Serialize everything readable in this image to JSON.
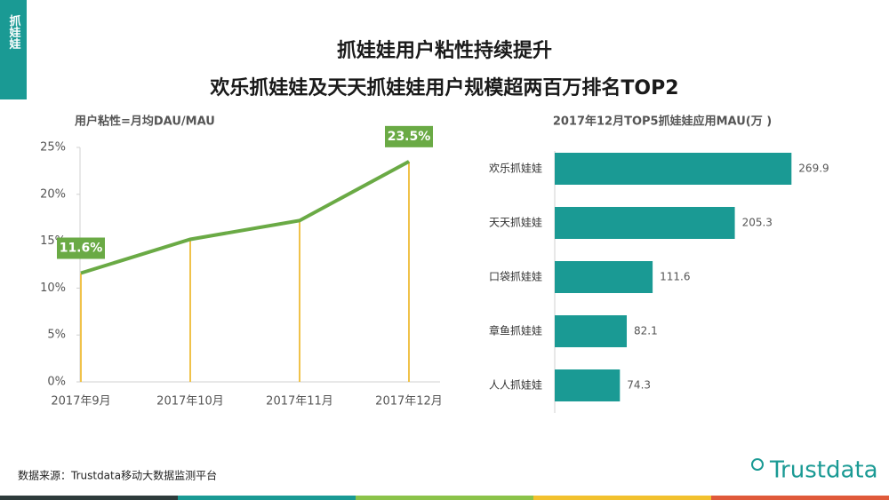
{
  "tab": "抓娃娃",
  "title": [
    "抓娃娃用户粘性持续提升",
    "欢乐抓娃娃及天天抓娃娃用户规模超两百万排名TOP2"
  ],
  "source": "数据来源：Trustdata移动大数据监测平台",
  "logo": "Trustdata",
  "chart_data": [
    {
      "type": "line",
      "title": "用户粘性=月均DAU/MAU",
      "categories": [
        "2017年9月",
        "2017年10月",
        "2017年11月",
        "2017年12月"
      ],
      "values": [
        11.6,
        15.2,
        17.2,
        23.5
      ],
      "value_labels": [
        "11.6%",
        null,
        null,
        "23.5%"
      ],
      "color": "#6aaa45",
      "drop_color": "#f0c24a",
      "ylim": [
        0,
        25
      ],
      "yticks": [
        {
          "value": 0,
          "label": "0%"
        },
        {
          "value": 5,
          "label": "5%"
        },
        {
          "value": 10,
          "label": "10%"
        },
        {
          "value": 15,
          "label": "15%"
        },
        {
          "value": 20,
          "label": "20%"
        },
        {
          "value": 25,
          "label": "25%"
        }
      ]
    },
    {
      "type": "hbar",
      "title": "2017年12月TOP5抓娃娃应用MAU(万 )",
      "categories": [
        "欢乐抓娃娃",
        "天天抓娃娃",
        "口袋抓娃娃",
        "章鱼抓娃娃",
        "人人抓娃娃"
      ],
      "values": [
        269.9,
        205.3,
        111.6,
        82.1,
        74.3
      ],
      "color": "#1a9a94",
      "xlim": [
        0,
        300
      ]
    }
  ]
}
